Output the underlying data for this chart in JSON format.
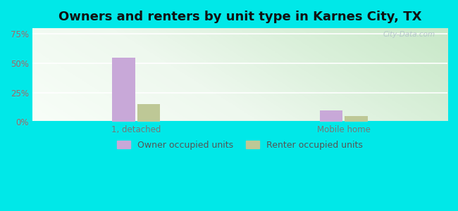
{
  "title": "Owners and renters by unit type in Karnes City, TX",
  "categories": [
    "1, detached",
    "Mobile home"
  ],
  "owner_values": [
    55.0,
    10.0
  ],
  "renter_values": [
    15.0,
    5.0
  ],
  "owner_color": "#c8a8d8",
  "renter_color": "#bec896",
  "yticks": [
    0,
    25,
    50,
    75
  ],
  "ylabels": [
    "0%",
    "25%",
    "50%",
    "75%"
  ],
  "ylim": [
    0,
    80
  ],
  "bar_width": 0.12,
  "legend_labels": [
    "Owner occupied units",
    "Renter occupied units"
  ],
  "watermark": "City-Data.com",
  "outer_bg": "#00e8e8",
  "title_fontsize": 13,
  "tick_fontsize": 8.5,
  "legend_fontsize": 9,
  "ytick_color": "#aa6666",
  "xtick_color": "#777777",
  "grid_color": "#dddddd",
  "bg_colors": [
    "#d8eed8",
    "#eaf5ea",
    "#f2f8ee",
    "#f8fcf4",
    "#f0f8f8",
    "#e8f8f8"
  ],
  "group_centers": [
    0.25,
    0.75
  ]
}
